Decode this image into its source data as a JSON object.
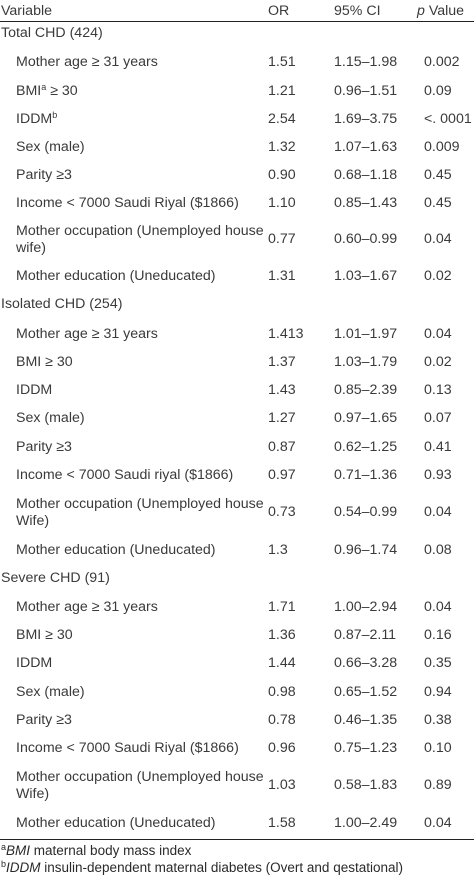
{
  "header": {
    "variable": "Variable",
    "or": "OR",
    "ci": "95% CI",
    "p_italic": "p",
    "p_rest": " Value"
  },
  "groups": [
    {
      "label": "Total CHD (424)",
      "rows": [
        {
          "variable": "Mother age ≥ 31 years",
          "or": "1.51",
          "ci": "1.15–1.98",
          "p": "0.002"
        },
        {
          "variable": "BMI",
          "sup": "a",
          "variable_after": " ≥ 30",
          "or": "1.21",
          "ci": "0.96–1.51",
          "p": "0.09"
        },
        {
          "variable": "IDDM",
          "sup": "b",
          "variable_after": "",
          "or": "2.54",
          "ci": "1.69–3.75",
          "p": "<. 0001"
        },
        {
          "variable": "Sex (male)",
          "or": "1.32",
          "ci": "1.07–1.63",
          "p": "0.009"
        },
        {
          "variable": "Parity ≥3",
          "or": "0.90",
          "ci": "0.68–1.18",
          "p": "0.45"
        },
        {
          "variable": "Income < 7000 Saudi Riyal ($1866)",
          "or": "1.10",
          "ci": "0.85–1.43",
          "p": "0.45"
        },
        {
          "variable": "Mother occupation (Unemployed house wife)",
          "or": "0.77",
          "ci": "0.60–0.99",
          "p": "0.04"
        },
        {
          "variable": "Mother education (Uneducated)",
          "or": "1.31",
          "ci": "1.03–1.67",
          "p": "0.02"
        }
      ]
    },
    {
      "label": "Isolated CHD (254)",
      "rows": [
        {
          "variable": "Mother age ≥ 31 years",
          "or": "1.413",
          "ci": "1.01–1.97",
          "p": "0.04"
        },
        {
          "variable": "BMI ≥ 30",
          "or": "1.37",
          "ci": "1.03–1.79",
          "p": "0.02"
        },
        {
          "variable": "IDDM",
          "or": "1.43",
          "ci": "0.85–2.39",
          "p": "0.13"
        },
        {
          "variable": "Sex (male)",
          "or": "1.27",
          "ci": "0.97–1.65",
          "p": "0.07"
        },
        {
          "variable": "Parity ≥3",
          "or": "0.87",
          "ci": "0.62–1.25",
          "p": "0.41"
        },
        {
          "variable": "Income < 7000 Saudi riyal ($1866)",
          "or": "0.97",
          "ci": "0.71–1.36",
          "p": "0.93"
        },
        {
          "variable": "Mother occupation (Unemployed house Wife)",
          "or": "0.73",
          "ci": "0.54–0.99",
          "p": "0.04"
        },
        {
          "variable": "Mother education (Uneducated)",
          "or": "1.3",
          "ci": "0.96–1.74",
          "p": "0.08"
        }
      ]
    },
    {
      "label": "Severe CHD (91)",
      "rows": [
        {
          "variable": "Mother age ≥ 31 years",
          "or": "1.71",
          "ci": "1.00–2.94",
          "p": "0.04"
        },
        {
          "variable": "BMI ≥ 30",
          "or": "1.36",
          "ci": "0.87–2.11",
          "p": "0.16"
        },
        {
          "variable": "IDDM",
          "or": "1.44",
          "ci": "0.66–3.28",
          "p": "0.35"
        },
        {
          "variable": "Sex (male)",
          "or": "0.98",
          "ci": "0.65–1.52",
          "p": "0.94"
        },
        {
          "variable": "Parity ≥3",
          "or": "0.78",
          "ci": "0.46–1.35",
          "p": "0.38"
        },
        {
          "variable": "Income < 7000 Saudi Riyal ($1866)",
          "or": "0.96",
          "ci": "0.75–1.23",
          "p": "0.10"
        },
        {
          "variable": "Mother occupation (Unemployed house Wife)",
          "or": "1.03",
          "ci": "0.58–1.83",
          "p": "0.89"
        },
        {
          "variable": "Mother education (Uneducated)",
          "or": "1.58",
          "ci": "1.00–2.49",
          "p": "0.04"
        }
      ]
    }
  ],
  "footnotes": [
    {
      "mark": "a",
      "term": "BMI",
      "text": " maternal body mass index"
    },
    {
      "mark": "b",
      "term": "IDDM",
      "text": " insulin-dependent maternal diabetes (Overt and qestational)"
    }
  ]
}
